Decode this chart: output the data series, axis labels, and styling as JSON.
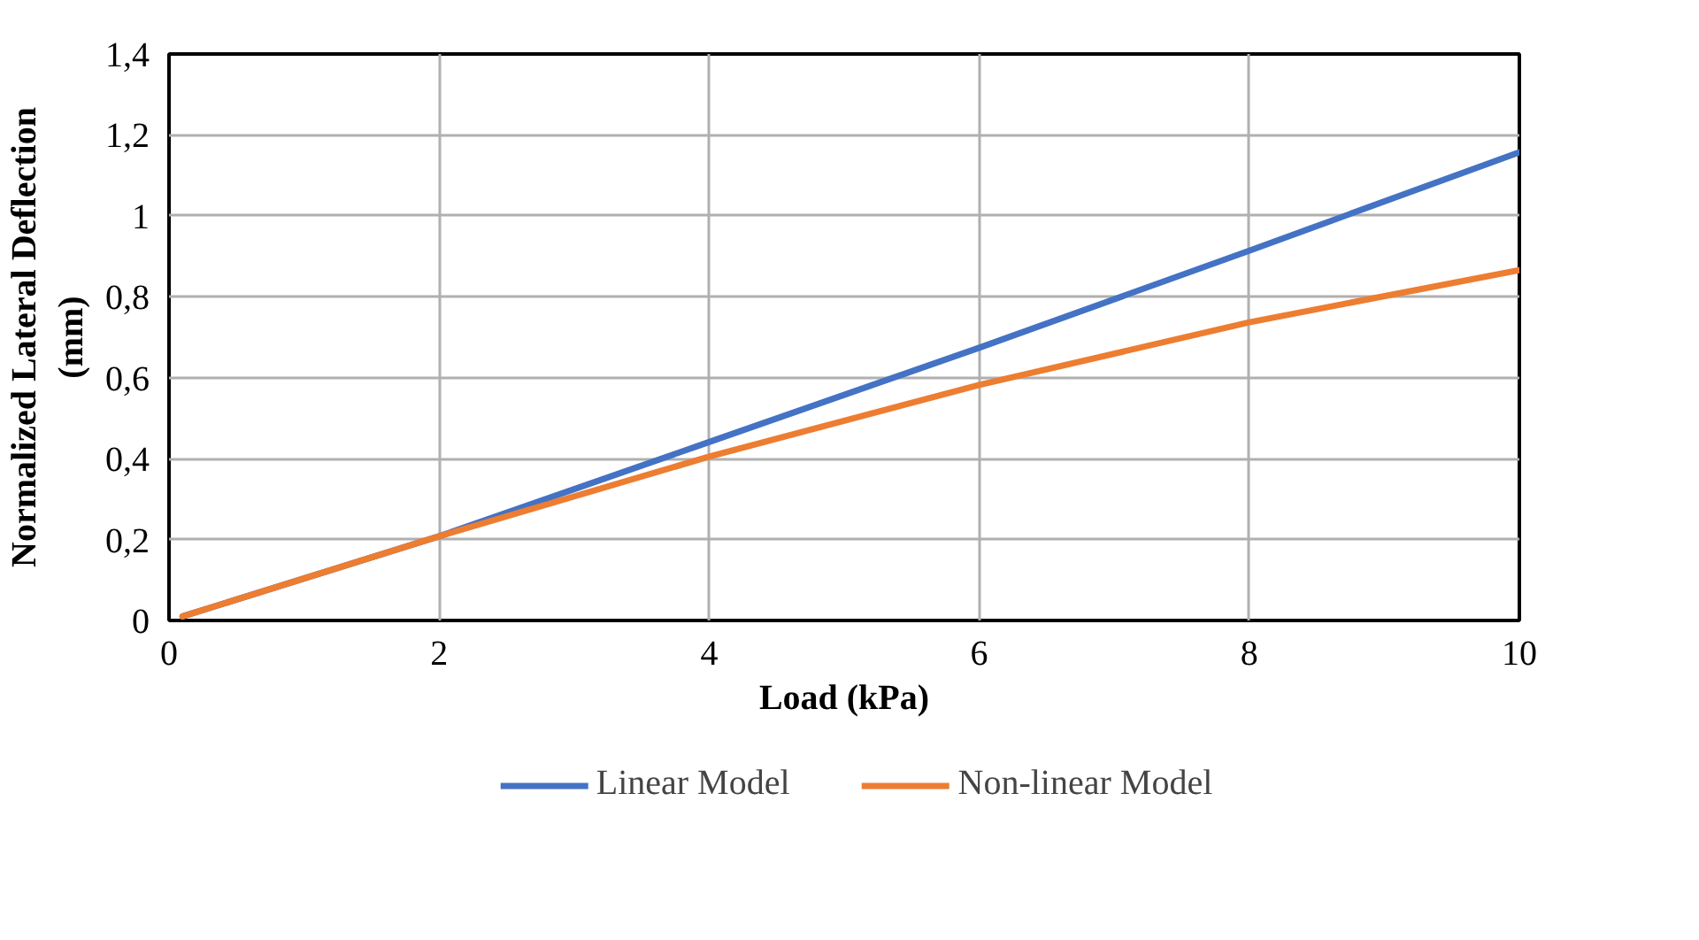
{
  "chart_data": {
    "type": "line",
    "xlabel": "Load (kPa)",
    "ylabel": "Normalized Lateral Deflection\n(mm)",
    "xlim": [
      0,
      10
    ],
    "xticks": [
      0,
      2,
      4,
      6,
      8,
      10
    ],
    "ylim": [
      0,
      1.4
    ],
    "yticks": [
      0,
      {
        "value": 0.2,
        "label": "0,2"
      },
      {
        "value": 0.4,
        "label": "0,4"
      },
      {
        "value": 0.6,
        "label": "0,6"
      },
      {
        "value": 0.8,
        "label": "0,8"
      },
      1,
      {
        "value": 1.2,
        "label": "1,2"
      },
      {
        "value": 1.4,
        "label": "1,4"
      }
    ],
    "grid": true,
    "legend": "bottom",
    "marker": "none",
    "line_style": "solid",
    "x": [
      0.1,
      2,
      4,
      6,
      8,
      10
    ],
    "series": [
      {
        "name": "Linear Model",
        "color": "#4472c4",
        "values": [
          0.01,
          0.208,
          0.441,
          0.674,
          0.914,
          1.157
        ]
      },
      {
        "name": "Non-linear Model",
        "color": "#ed7d31",
        "values": [
          0.01,
          0.208,
          0.405,
          0.582,
          0.737,
          0.866
        ]
      }
    ]
  }
}
